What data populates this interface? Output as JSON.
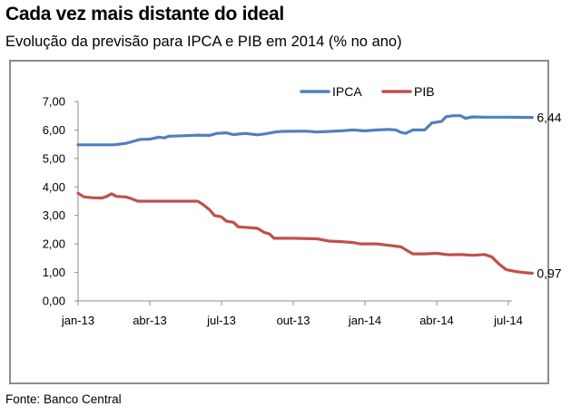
{
  "title": "Cada vez mais distante do ideal",
  "subtitle": "Evolução da previsão para IPCA e PIB em 2014 (% no ano)",
  "source": "Fonte: Banco Central",
  "chart_data": {
    "type": "line",
    "title": "Cada vez mais distante do ideal",
    "subtitle": "Evolução da previsão para IPCA e PIB em 2014 (% no ano)",
    "xlabel": "",
    "ylabel": "",
    "ylim": [
      0,
      7
    ],
    "y_ticks": [
      "0,00",
      "1,00",
      "2,00",
      "3,00",
      "4,00",
      "5,00",
      "6,00",
      "7,00"
    ],
    "x_ticks": [
      "jan-13",
      "abr-13",
      "jul-13",
      "out-13",
      "jan-14",
      "abr-14",
      "jul-14"
    ],
    "x_unit": "months since jan-13",
    "x_range": [
      0,
      19
    ],
    "legend_position": "top",
    "series": [
      {
        "name": "IPCA",
        "color": "#4F81BD",
        "end_label": "6,44",
        "points": [
          [
            0,
            5.48
          ],
          [
            1.5,
            5.48
          ],
          [
            2.0,
            5.53
          ],
          [
            2.3,
            5.6
          ],
          [
            2.6,
            5.67
          ],
          [
            3.0,
            5.68
          ],
          [
            3.4,
            5.75
          ],
          [
            3.6,
            5.72
          ],
          [
            3.8,
            5.78
          ],
          [
            4.5,
            5.8
          ],
          [
            5.0,
            5.82
          ],
          [
            5.5,
            5.81
          ],
          [
            5.8,
            5.88
          ],
          [
            6.2,
            5.9
          ],
          [
            6.5,
            5.84
          ],
          [
            7.0,
            5.88
          ],
          [
            7.5,
            5.83
          ],
          [
            7.8,
            5.86
          ],
          [
            8.2,
            5.92
          ],
          [
            8.5,
            5.95
          ],
          [
            9.5,
            5.96
          ],
          [
            10.0,
            5.93
          ],
          [
            10.5,
            5.95
          ],
          [
            11.0,
            5.97
          ],
          [
            11.5,
            6.0
          ],
          [
            12.0,
            5.97
          ],
          [
            12.5,
            6.0
          ],
          [
            13.0,
            6.02
          ],
          [
            13.3,
            6.0
          ],
          [
            13.5,
            5.92
          ],
          [
            13.7,
            5.88
          ],
          [
            14.0,
            6.0
          ],
          [
            14.5,
            6.0
          ],
          [
            14.8,
            6.25
          ],
          [
            15.2,
            6.3
          ],
          [
            15.4,
            6.47
          ],
          [
            15.7,
            6.5
          ],
          [
            16.0,
            6.5
          ],
          [
            16.2,
            6.41
          ],
          [
            16.5,
            6.46
          ],
          [
            17.0,
            6.45
          ],
          [
            18.0,
            6.45
          ],
          [
            19.0,
            6.44
          ]
        ]
      },
      {
        "name": "PIB",
        "color": "#C0504D",
        "end_label": "0,97",
        "points": [
          [
            0,
            3.78
          ],
          [
            0.25,
            3.65
          ],
          [
            0.6,
            3.62
          ],
          [
            1.0,
            3.61
          ],
          [
            1.2,
            3.67
          ],
          [
            1.4,
            3.76
          ],
          [
            1.6,
            3.67
          ],
          [
            2.0,
            3.65
          ],
          [
            2.2,
            3.6
          ],
          [
            2.5,
            3.5
          ],
          [
            3.0,
            3.5
          ],
          [
            4.0,
            3.5
          ],
          [
            4.5,
            3.5
          ],
          [
            5.0,
            3.5
          ],
          [
            5.2,
            3.4
          ],
          [
            5.5,
            3.2
          ],
          [
            5.7,
            3.0
          ],
          [
            6.0,
            2.95
          ],
          [
            6.2,
            2.8
          ],
          [
            6.5,
            2.76
          ],
          [
            6.7,
            2.6
          ],
          [
            7.5,
            2.55
          ],
          [
            7.8,
            2.4
          ],
          [
            8.0,
            2.35
          ],
          [
            8.2,
            2.2
          ],
          [
            9.0,
            2.2
          ],
          [
            10.0,
            2.18
          ],
          [
            10.5,
            2.1
          ],
          [
            11.0,
            2.08
          ],
          [
            11.5,
            2.05
          ],
          [
            11.8,
            2.0
          ],
          [
            12.5,
            2.0
          ],
          [
            13.0,
            1.95
          ],
          [
            13.5,
            1.9
          ],
          [
            13.8,
            1.75
          ],
          [
            14.0,
            1.65
          ],
          [
            14.5,
            1.65
          ],
          [
            15.0,
            1.67
          ],
          [
            15.5,
            1.62
          ],
          [
            16.0,
            1.63
          ],
          [
            16.5,
            1.6
          ],
          [
            17.0,
            1.63
          ],
          [
            17.3,
            1.55
          ],
          [
            17.6,
            1.3
          ],
          [
            17.9,
            1.1
          ],
          [
            18.3,
            1.03
          ],
          [
            18.6,
            1.0
          ],
          [
            19.0,
            0.97
          ]
        ]
      }
    ]
  }
}
